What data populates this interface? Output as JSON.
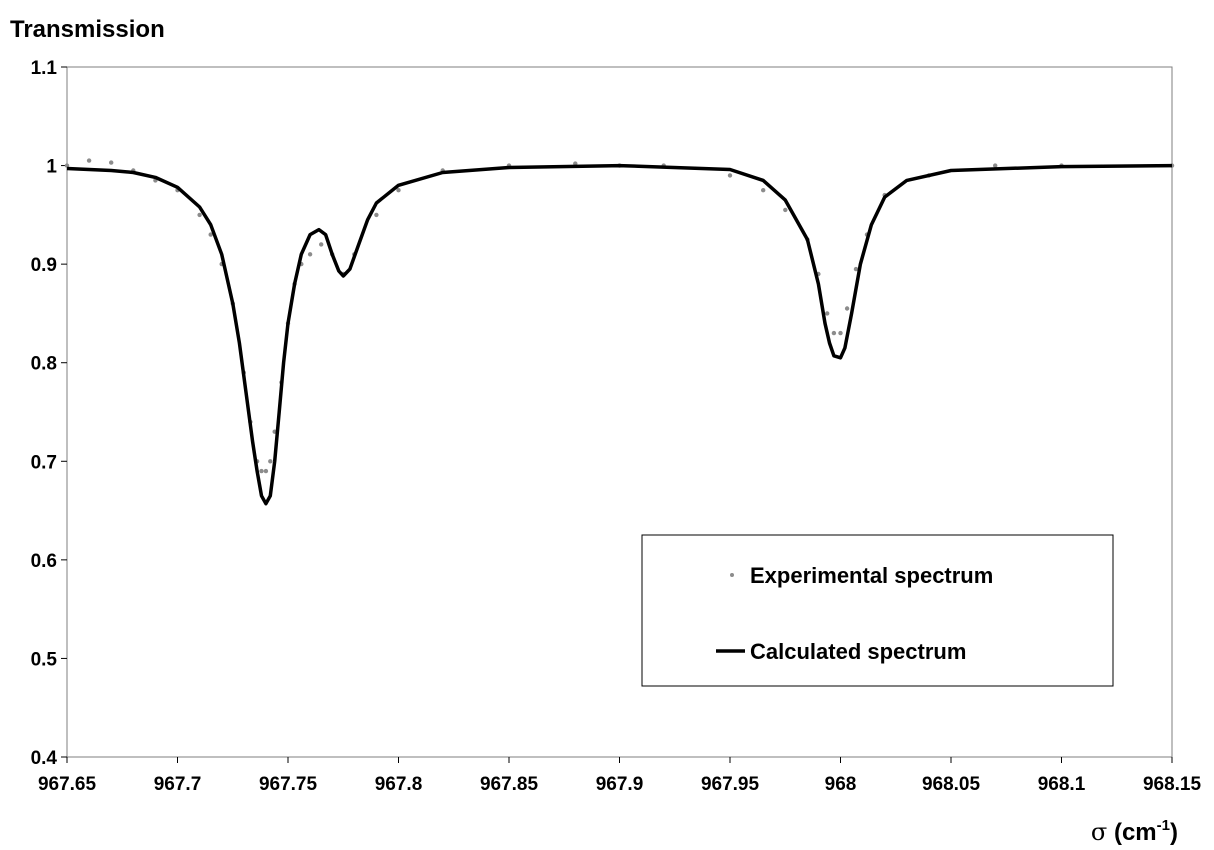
{
  "chart_data": {
    "type": "scatter",
    "ylabel": "Transmission",
    "xlabel_symbol": "σ",
    "xlabel_unit_open": " (cm",
    "xlabel_unit_exp": "-1",
    "xlabel_unit_close": ")",
    "xlim": [
      967.65,
      968.15
    ],
    "ylim": [
      0.4,
      1.1
    ],
    "x_ticks": [
      "967.65",
      "967.7",
      "967.75",
      "967.8",
      "967.85",
      "967.9",
      "967.95",
      "968",
      "968.05",
      "968.1",
      "968.15"
    ],
    "y_ticks": [
      "1.1",
      "1",
      "0.9",
      "0.8",
      "0.7",
      "0.6",
      "0.5",
      "0.4"
    ],
    "grid": false,
    "legend_position": "bottom-right",
    "series": [
      {
        "name": "Experimental spectrum",
        "style": "points",
        "color": "#8c8c8c",
        "x": [
          967.65,
          967.66,
          967.67,
          967.68,
          967.69,
          967.7,
          967.71,
          967.715,
          967.72,
          967.725,
          967.73,
          967.733,
          967.736,
          967.738,
          967.74,
          967.742,
          967.744,
          967.747,
          967.75,
          967.753,
          967.756,
          967.76,
          967.765,
          967.77,
          967.775,
          967.78,
          967.79,
          967.8,
          967.82,
          967.85,
          967.88,
          967.9,
          967.92,
          967.95,
          967.965,
          967.975,
          967.985,
          967.99,
          967.994,
          967.997,
          968.0,
          968.003,
          968.007,
          968.012,
          968.02,
          968.04,
          968.07,
          968.1,
          968.15
        ],
        "y": [
          1.0,
          1.005,
          1.003,
          0.995,
          0.985,
          0.975,
          0.95,
          0.93,
          0.9,
          0.86,
          0.79,
          0.74,
          0.7,
          0.69,
          0.69,
          0.7,
          0.73,
          0.78,
          0.84,
          0.88,
          0.9,
          0.91,
          0.92,
          0.91,
          0.89,
          0.91,
          0.95,
          0.975,
          0.995,
          1.0,
          1.002,
          1.0,
          1.0,
          0.99,
          0.975,
          0.955,
          0.925,
          0.89,
          0.85,
          0.83,
          0.83,
          0.855,
          0.895,
          0.93,
          0.97,
          0.99,
          1.0,
          1.0,
          1.0
        ]
      },
      {
        "name": "Calculated spectrum",
        "style": "line",
        "color": "#000000",
        "x": [
          967.65,
          967.66,
          967.67,
          967.68,
          967.69,
          967.7,
          967.71,
          967.715,
          967.72,
          967.725,
          967.728,
          967.731,
          967.734,
          967.736,
          967.738,
          967.74,
          967.742,
          967.744,
          967.746,
          967.748,
          967.75,
          967.753,
          967.756,
          967.76,
          967.764,
          967.767,
          967.77,
          967.773,
          967.775,
          967.778,
          967.782,
          967.786,
          967.79,
          967.8,
          967.82,
          967.85,
          967.9,
          967.95,
          967.965,
          967.975,
          967.985,
          967.99,
          967.993,
          967.995,
          967.997,
          968.0,
          968.002,
          968.005,
          968.009,
          968.014,
          968.02,
          968.03,
          968.05,
          968.1,
          968.15
        ],
        "y": [
          0.997,
          0.996,
          0.995,
          0.993,
          0.988,
          0.978,
          0.958,
          0.94,
          0.91,
          0.86,
          0.82,
          0.77,
          0.72,
          0.69,
          0.665,
          0.657,
          0.665,
          0.7,
          0.75,
          0.8,
          0.84,
          0.88,
          0.91,
          0.93,
          0.935,
          0.93,
          0.91,
          0.893,
          0.888,
          0.895,
          0.92,
          0.945,
          0.962,
          0.98,
          0.993,
          0.998,
          1.0,
          0.996,
          0.985,
          0.965,
          0.925,
          0.88,
          0.84,
          0.82,
          0.807,
          0.805,
          0.815,
          0.85,
          0.9,
          0.94,
          0.968,
          0.985,
          0.995,
          0.999,
          1.0
        ]
      }
    ]
  }
}
